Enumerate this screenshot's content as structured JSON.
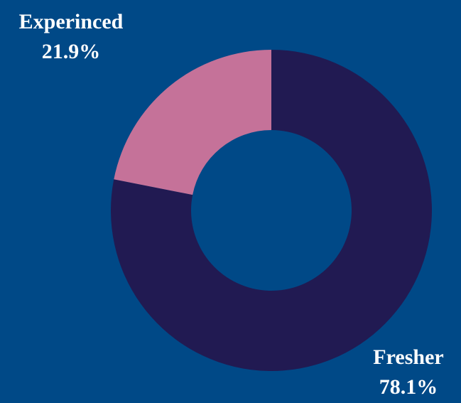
{
  "chart_data": {
    "type": "pie",
    "donut": true,
    "title": "",
    "slices": [
      {
        "name": "Fresher",
        "value": 78.1,
        "label": "78.1%",
        "color": "#211a52"
      },
      {
        "name": "Experinced",
        "value": 21.9,
        "label": "21.9%",
        "color": "#c57299"
      }
    ],
    "start_angle_deg": 0,
    "direction": "clockwise",
    "legend": "none",
    "grid": false
  },
  "colors": {
    "background": "#004987",
    "label_text": "#ffffff"
  }
}
